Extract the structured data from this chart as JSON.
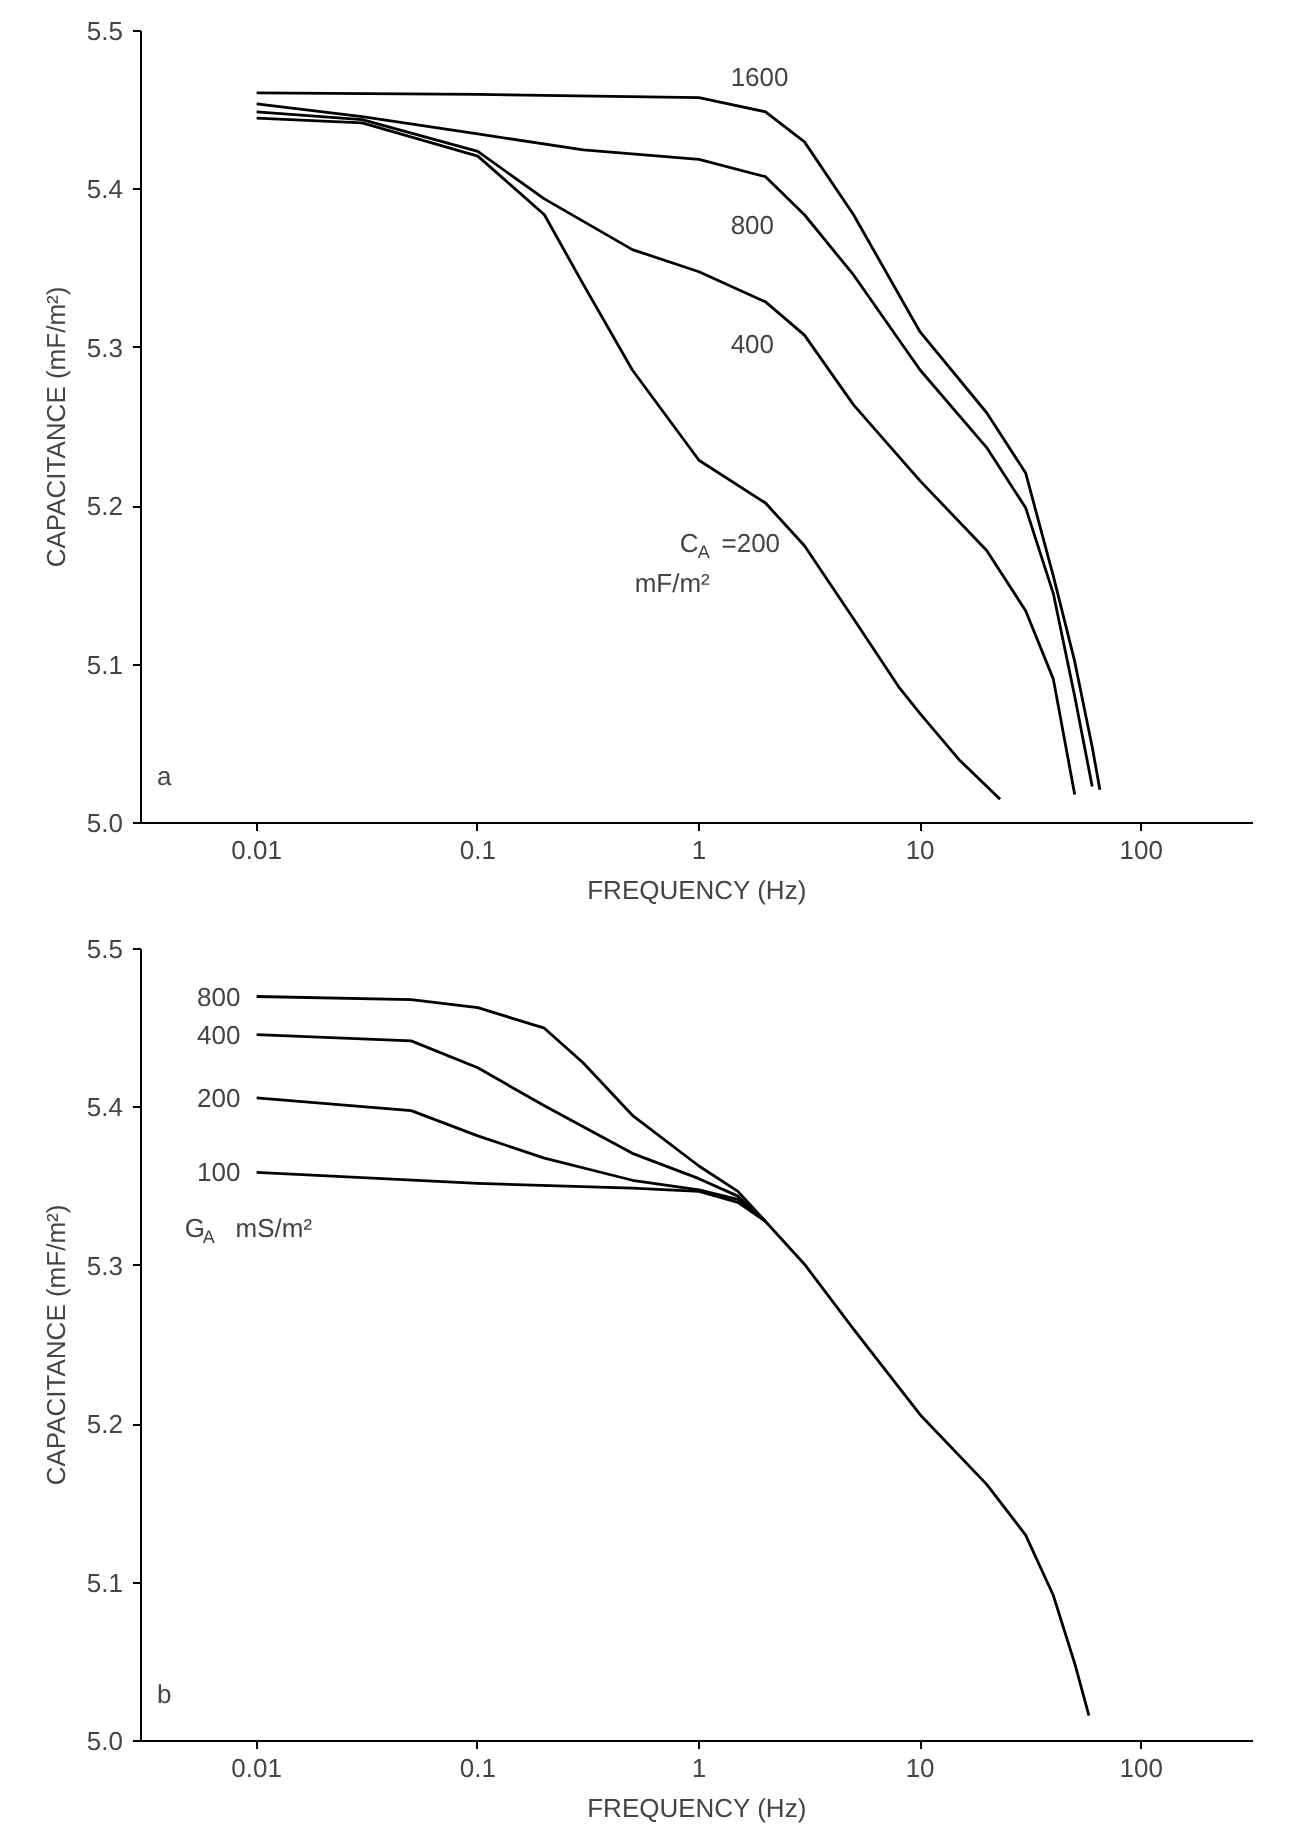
{
  "chart_data": [
    {
      "type": "line",
      "xlabel": "FREQUENCY (Hz)",
      "ylabel": "CAPACITANCE (mF/m²)",
      "log": "x",
      "xlim": [
        0.003,
        320
      ],
      "ylim": [
        5.0,
        5.5
      ],
      "xticks": [
        0.01,
        0.1,
        1,
        10,
        100
      ],
      "yticks": [
        {
          "value": 5.0,
          "label": "5.0"
        },
        5.1,
        5.2,
        5.3,
        5.4,
        5.5
      ],
      "annotations": [
        "a"
      ],
      "series": [
        {
          "name": "1600",
          "color": "#000000",
          "x": [
            0.01,
            0.1,
            1,
            2,
            3,
            5,
            10,
            20,
            30,
            40,
            50,
            60,
            65
          ],
          "values": [
            5.461,
            5.46,
            5.458,
            5.449,
            5.43,
            5.384,
            5.31,
            5.259,
            5.221,
            5.156,
            5.102,
            5.048,
            5.021
          ]
        },
        {
          "name": "800",
          "color": "#000000",
          "x": [
            0.01,
            0.03,
            0.1,
            0.3,
            1,
            2,
            3,
            5,
            10,
            20,
            30,
            40,
            50,
            60
          ],
          "values": [
            5.454,
            5.446,
            5.435,
            5.425,
            5.419,
            5.408,
            5.384,
            5.346,
            5.286,
            5.237,
            5.199,
            5.145,
            5.08,
            5.023
          ]
        },
        {
          "name": "400",
          "color": "#000000",
          "x": [
            0.01,
            0.03,
            0.1,
            0.2,
            0.5,
            1,
            2,
            3,
            5,
            10,
            20,
            30,
            40,
            50
          ],
          "values": [
            5.449,
            5.444,
            5.424,
            5.394,
            5.362,
            5.348,
            5.329,
            5.308,
            5.264,
            5.216,
            5.172,
            5.134,
            5.091,
            5.018
          ]
        },
        {
          "name": "C$_{A}$ =200 mF/m²",
          "color": "#000000",
          "x": [
            0.01,
            0.03,
            0.1,
            0.2,
            0.3,
            0.5,
            1,
            2,
            3,
            5,
            8,
            10,
            15,
            23
          ],
          "values": [
            5.445,
            5.442,
            5.421,
            5.384,
            5.34,
            5.286,
            5.229,
            5.202,
            5.175,
            5.129,
            5.086,
            5.069,
            5.04,
            5.015
          ]
        }
      ]
    },
    {
      "type": "line",
      "xlabel": "FREQUENCY (Hz)",
      "ylabel": "CAPACITANCE (mF/m²)",
      "log": "x",
      "xlim": [
        0.003,
        320
      ],
      "ylim": [
        5.0,
        5.5
      ],
      "xticks": [
        0.01,
        0.1,
        1,
        10,
        100
      ],
      "yticks": [
        {
          "value": 5.0,
          "label": "5.0"
        },
        5.1,
        5.2,
        5.3,
        5.4,
        5.5
      ],
      "annotations": [
        "G$_{A}$  mS/m²",
        "b"
      ],
      "series": [
        {
          "name": "800",
          "color": "#000000",
          "x": [
            0.01,
            0.05,
            0.1,
            0.2,
            0.3,
            0.5,
            1,
            1.5,
            2,
            3,
            5,
            10,
            20,
            30,
            40,
            50,
            58
          ],
          "values": [
            5.47,
            5.468,
            5.463,
            5.45,
            5.428,
            5.395,
            5.363,
            5.347,
            5.328,
            5.301,
            5.26,
            5.206,
            5.162,
            5.13,
            5.092,
            5.049,
            5.016
          ]
        },
        {
          "name": "400",
          "color": "#000000",
          "x": [
            0.01,
            0.05,
            0.1,
            0.2,
            0.5,
            1,
            1.5,
            2
          ],
          "values": [
            5.446,
            5.442,
            5.425,
            5.401,
            5.371,
            5.355,
            5.344,
            5.328
          ]
        },
        {
          "name": "200",
          "color": "#000000",
          "x": [
            0.01,
            0.05,
            0.1,
            0.2,
            0.5,
            1,
            1.5,
            2
          ],
          "values": [
            5.406,
            5.398,
            5.382,
            5.368,
            5.354,
            5.348,
            5.342,
            5.328
          ]
        },
        {
          "name": "100",
          "color": "#000000",
          "x": [
            0.01,
            0.1,
            0.5,
            1,
            1.5,
            2
          ],
          "values": [
            5.359,
            5.352,
            5.349,
            5.347,
            5.34,
            5.328
          ]
        }
      ]
    }
  ]
}
